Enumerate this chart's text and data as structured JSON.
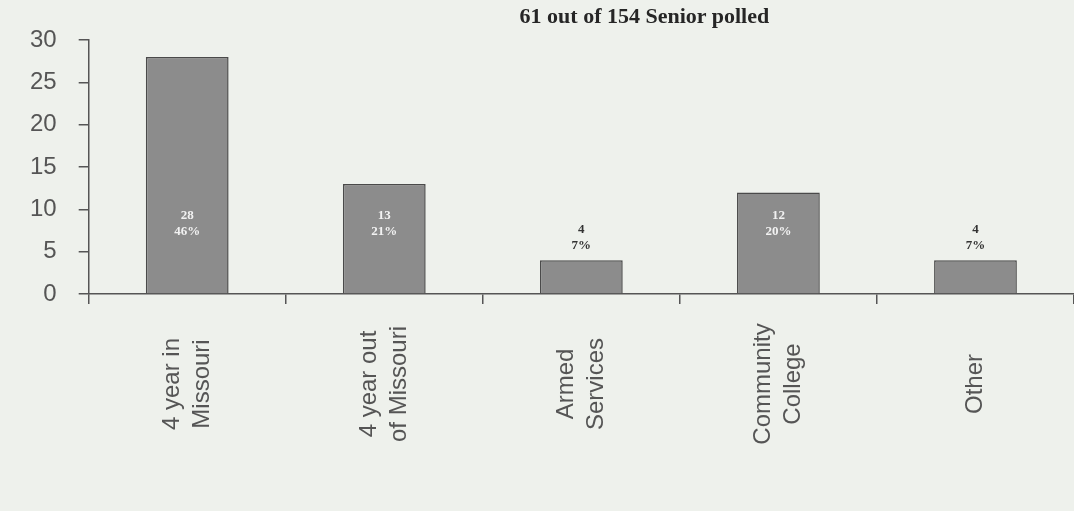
{
  "chart_data": {
    "type": "bar",
    "title": "61 out of 154 Senior polled",
    "categories": [
      "4 year in Missouri",
      "4 year out of Missouri",
      "Armed Services",
      "Community College",
      "Other"
    ],
    "values": [
      28,
      13,
      4,
      12,
      4
    ],
    "color": "#8c8c8c",
    "value_labels": [
      "28\n46%",
      "13\n21%",
      "4\n7%",
      "12\n20%",
      "4\n7%"
    ],
    "ylim": [
      0,
      30
    ],
    "yticks": [
      0,
      5,
      10,
      15,
      20,
      25,
      30
    ]
  }
}
